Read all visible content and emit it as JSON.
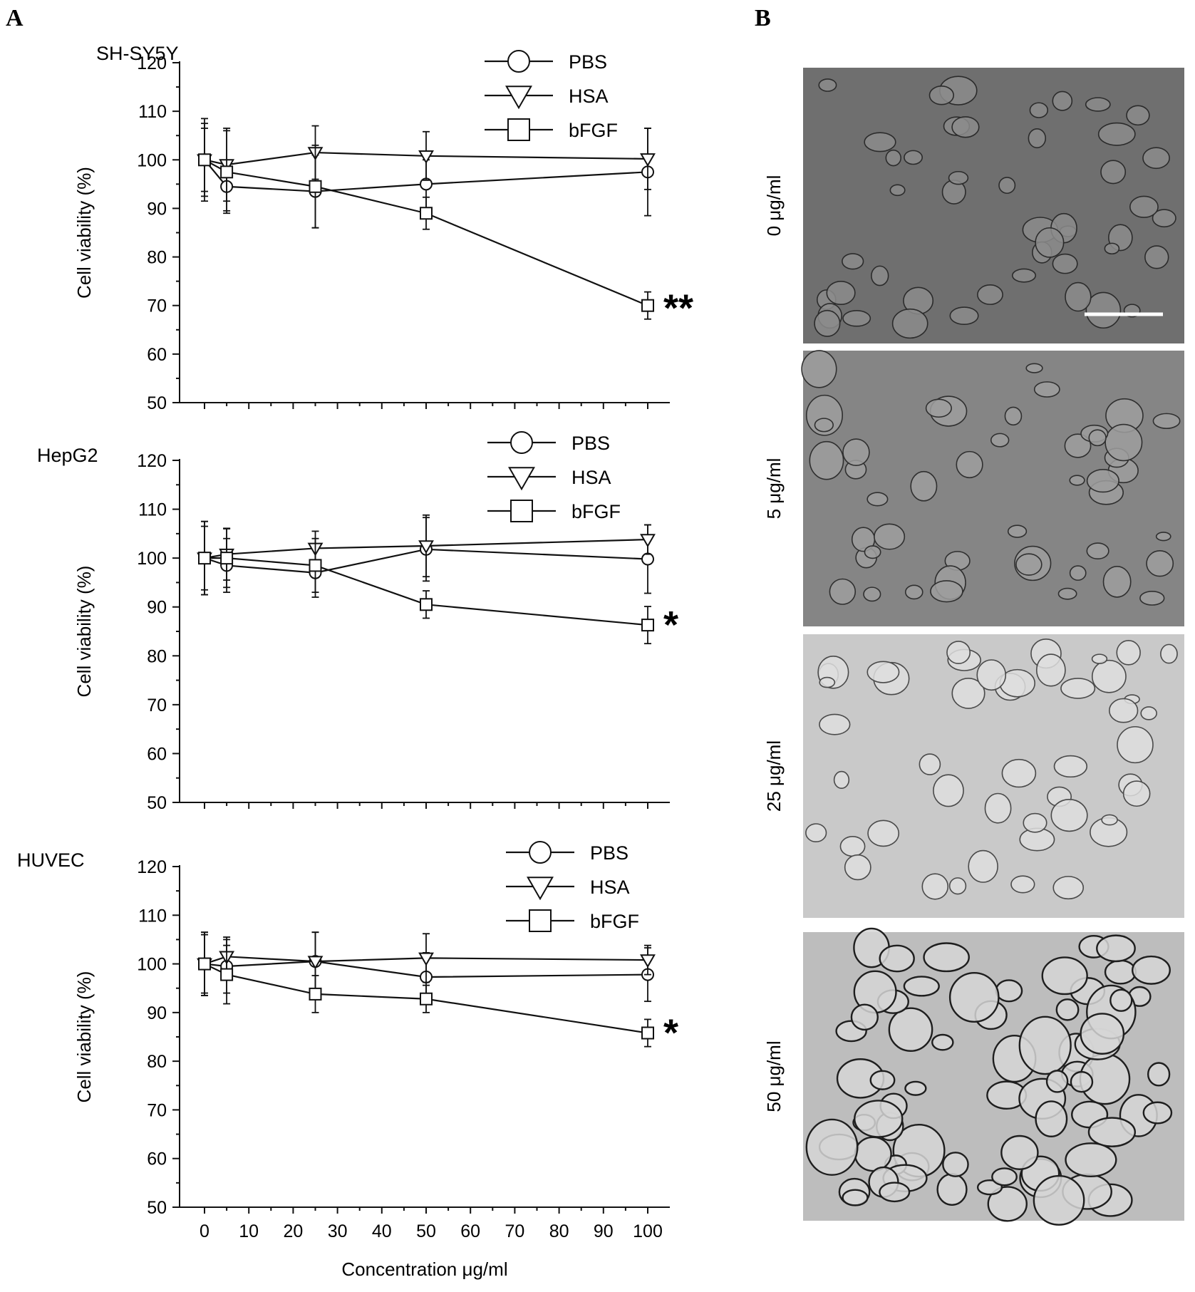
{
  "panel_a_letter": "A",
  "panel_b_letter": "B",
  "chart_data": [
    {
      "type": "line",
      "cell_line": "SH-SY5Y",
      "ylabel": "Cell viability (%)",
      "xlabel": "",
      "ylim": [
        50,
        120
      ],
      "xlim": [
        -5,
        105
      ],
      "yticks": [
        50,
        60,
        70,
        80,
        90,
        100,
        110,
        120
      ],
      "xticks": [
        0,
        10,
        20,
        30,
        40,
        50,
        60,
        70,
        80,
        90,
        100
      ],
      "show_xtick_labels": false,
      "x": [
        0,
        5,
        25,
        50,
        100
      ],
      "legend_position": "top-right",
      "significance": "**",
      "series": [
        {
          "name": "PBS",
          "marker": "circle",
          "values": [
            100,
            94.5,
            93.5,
            95,
            97.5
          ],
          "errors": [
            8.5,
            5,
            7.5,
            5,
            9
          ]
        },
        {
          "name": "HSA",
          "marker": "triangle",
          "values": [
            100,
            99,
            101.5,
            100.8,
            100.2
          ],
          "errors": [
            6.5,
            7.5,
            5.5,
            5,
            6.3
          ]
        },
        {
          "name": "bFGF",
          "marker": "square",
          "values": [
            100,
            97.5,
            94.5,
            89,
            70
          ],
          "errors": [
            7.5,
            8.5,
            8.5,
            3.3,
            2.8
          ]
        }
      ]
    },
    {
      "type": "line",
      "cell_line": "HepG2",
      "ylabel": "Cell viability (%)",
      "xlabel": "",
      "ylim": [
        50,
        120
      ],
      "xlim": [
        -5,
        105
      ],
      "yticks": [
        50,
        60,
        70,
        80,
        90,
        100,
        110,
        120
      ],
      "xticks": [
        0,
        10,
        20,
        30,
        40,
        50,
        60,
        70,
        80,
        90,
        100
      ],
      "show_xtick_labels": false,
      "x": [
        0,
        5,
        25,
        50,
        100
      ],
      "legend_position": "top-right",
      "significance": "*",
      "series": [
        {
          "name": "PBS",
          "marker": "circle",
          "values": [
            100,
            98.5,
            97,
            101.8,
            99.8
          ],
          "errors": [
            7.5,
            5.5,
            5,
            6.5,
            7
          ]
        },
        {
          "name": "HSA",
          "marker": "triangle",
          "values": [
            100,
            100.8,
            102,
            102.5,
            103.8
          ],
          "errors": [
            6.5,
            5.3,
            3.5,
            6.3,
            3
          ]
        },
        {
          "name": "bFGF",
          "marker": "square",
          "values": [
            100,
            100,
            98.5,
            90.5,
            86.3
          ],
          "errors": [
            7.5,
            6,
            5.5,
            2.8,
            3.8
          ]
        }
      ]
    },
    {
      "type": "line",
      "cell_line": "HUVEC",
      "ylabel": "Cell viability (%)",
      "xlabel": "Concentration μg/ml",
      "ylim": [
        50,
        120
      ],
      "xlim": [
        -5,
        105
      ],
      "yticks": [
        50,
        60,
        70,
        80,
        90,
        100,
        110,
        120
      ],
      "xticks": [
        0,
        10,
        20,
        30,
        40,
        50,
        60,
        70,
        80,
        90,
        100
      ],
      "show_xtick_labels": true,
      "x": [
        0,
        5,
        25,
        50,
        100
      ],
      "legend_position": "top-right",
      "significance": "*",
      "series": [
        {
          "name": "PBS",
          "marker": "circle",
          "values": [
            100,
            99.5,
            100.5,
            97.3,
            97.8
          ],
          "errors": [
            6.5,
            5.5,
            6,
            5,
            5.5
          ]
        },
        {
          "name": "HSA",
          "marker": "triangle",
          "values": [
            100,
            101.5,
            100.5,
            101.2,
            100.8
          ],
          "errors": [
            6,
            4,
            6,
            5,
            3
          ]
        },
        {
          "name": "bFGF",
          "marker": "square",
          "values": [
            100,
            97.8,
            93.8,
            92.8,
            85.8
          ],
          "errors": [
            6.5,
            6,
            3.8,
            2.8,
            2.8
          ]
        }
      ]
    }
  ],
  "micrographs": [
    {
      "label": "0 μg/ml",
      "tone": "#6f6f6f",
      "cell_fill": "#8c8c8c",
      "cell_edge": "#2b2b2b",
      "scale_bar": true
    },
    {
      "label": "5 μg/ml",
      "tone": "#858585",
      "cell_fill": "#9e9e9e",
      "cell_edge": "#2f2f2f",
      "scale_bar": false
    },
    {
      "label": "25 μg/ml",
      "tone": "#c9c9c9",
      "cell_fill": "#dedede",
      "cell_edge": "#4a4a4a",
      "scale_bar": false
    },
    {
      "label": "50 μg/ml",
      "tone": "#bdbdbd",
      "cell_fill": "#d6d6d6",
      "cell_edge": "#1e1e1e",
      "scale_bar": false
    }
  ],
  "colors": {
    "ink": "#111111",
    "background": "#ffffff",
    "scale_bar": "#ffffff"
  }
}
